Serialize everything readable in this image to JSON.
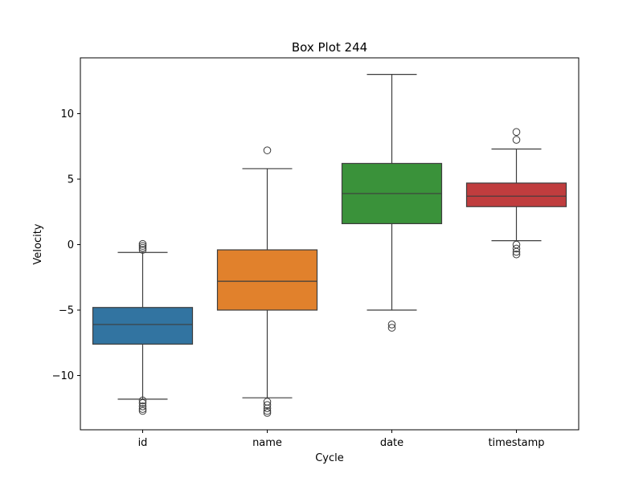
{
  "chart_data": {
    "type": "box",
    "title": "Box Plot 244",
    "xlabel": "Cycle",
    "ylabel": "Velocity",
    "ylim": [
      -14,
      14
    ],
    "yticks": [
      -10,
      -5,
      0,
      5,
      10
    ],
    "ytick_labels": [
      "−10",
      "−5",
      "0",
      "5",
      "10"
    ],
    "grid": false,
    "categories": [
      "id",
      "name",
      "date",
      "timestamp"
    ],
    "boxes": [
      {
        "category": "id",
        "color": "#3274a1",
        "whisker_low": -11.8,
        "q1": -7.6,
        "median": -6.1,
        "q3": -4.8,
        "whisker_high": -0.6,
        "outliers": [
          0.05,
          -0.1,
          -0.25,
          -0.4,
          -11.9,
          -12.1,
          -12.35,
          -12.55,
          -12.7
        ]
      },
      {
        "category": "name",
        "color": "#e1812c",
        "whisker_low": -11.7,
        "q1": -5.0,
        "median": -2.8,
        "q3": -0.4,
        "whisker_high": 5.8,
        "outliers": [
          7.2,
          -12.0,
          -12.25,
          -12.5,
          -12.7,
          -12.85
        ]
      },
      {
        "category": "date",
        "color": "#3a923a",
        "whisker_low": -5.0,
        "q1": 1.6,
        "median": 3.9,
        "q3": 6.2,
        "whisker_high": 13.0,
        "outliers": [
          -6.1,
          -6.35
        ]
      },
      {
        "category": "timestamp",
        "color": "#c03d3e",
        "whisker_low": 0.3,
        "q1": 2.9,
        "median": 3.7,
        "q3": 4.7,
        "whisker_high": 7.3,
        "outliers": [
          8.6,
          8.0,
          0.0,
          -0.3,
          -0.55,
          -0.75
        ]
      }
    ]
  }
}
